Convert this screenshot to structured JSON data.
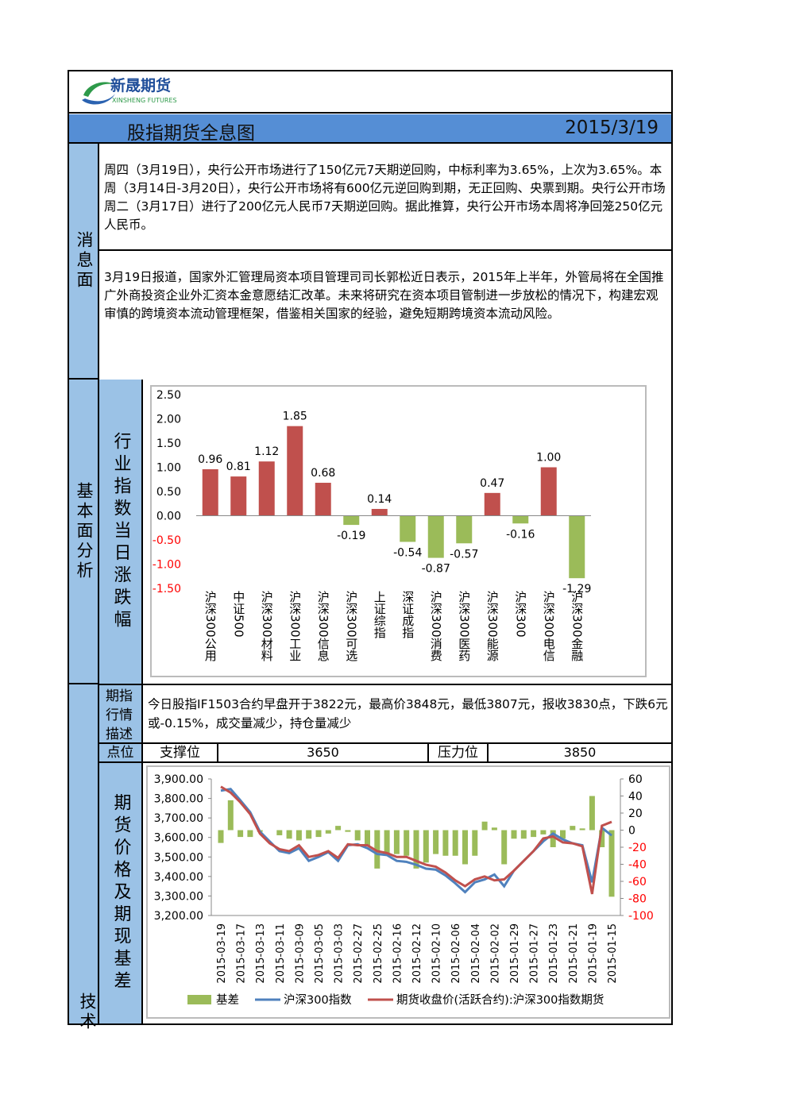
{
  "header": {
    "logo": "新晟期货",
    "logo_en": "XINSHENG FUTURES",
    "title": "股指期货全息图",
    "date": "2015/3/19"
  },
  "news": {
    "label": "消息面",
    "items": [
      "周四（3月19日），央行公开市场进行了150亿元7天期逆回购，中标利率为3.65%，上次为3.65%。本周（3月14日-3月20日），央行公开市场将有600亿元逆回购到期，无正回购、央票到期。央行公开市场周二（3月17日）进行了200亿元人民币7天期逆回购。据此推算，央行公开市场本周将净回笼250亿元人民币。",
      "3月19日报道，国家外汇管理局资本项目管理司司长郭松近日表示，2015年上半年，外管局将在全国推广外商投资企业外汇资本金意愿结汇改革。未来将研究在资本项目管制进一步放松的情况下，构建宏观审慎的跨境资本流动管理框架，借鉴相关国家的经验，避免短期跨境资本流动风险。"
    ]
  },
  "fundamental": {
    "label": "基本面分析",
    "chart_label": "行业指数当日涨跌幅"
  },
  "technical": {
    "label": "技术",
    "desc_label": "期指行情描述",
    "desc": "今日股指IF1503合约早盘开于3822元，最高价3848元，最低3807元，报收3830点，下跌6元或-0.15%，成交量减少，持仓量减少",
    "points_label": "点位",
    "support_label": "支撑位",
    "support": 3650,
    "resistance_label": "压力位",
    "resistance": 3850,
    "chart_label": "期货价格及期现基差"
  },
  "chart_data": [
    {
      "type": "bar",
      "categories": [
        "沪深300公用",
        "中证500",
        "沪深300材料",
        "沪深300工业",
        "沪深300信息",
        "沪深300可选",
        "上证综指",
        "深证成指",
        "沪深300消费",
        "沪深300医药",
        "沪深300能源",
        "沪深300",
        "沪深300电信",
        "沪深300金融"
      ],
      "values": [
        0.96,
        0.81,
        1.12,
        1.85,
        0.68,
        -0.19,
        0.14,
        -0.54,
        -0.87,
        -0.57,
        0.47,
        -0.16,
        1.0,
        -1.29
      ],
      "value_labels": [
        "0.96",
        "0.81",
        "1.12",
        "1.85",
        "0.68",
        "-0.19",
        "0.14",
        "-0.54",
        "-0.87",
        "-0.57",
        "0.47",
        "-0.16",
        "1.00",
        "-1.29"
      ],
      "positive_color": "#c0504d",
      "negative_color": "#9bbb59",
      "negative_tick_color": "#ff0000",
      "ylim": [
        -1.5,
        2.5
      ],
      "yticks": [
        {
          "value": 2.5,
          "label": "2.50"
        },
        {
          "value": 2,
          "label": "2.00"
        },
        {
          "value": 1.5,
          "label": "1.50"
        },
        {
          "value": 1,
          "label": "1.00"
        },
        {
          "value": 0.5,
          "label": "0.50"
        },
        {
          "value": 0,
          "label": "0.00"
        },
        {
          "value": -0.5,
          "label": "-0.50"
        },
        {
          "value": -1,
          "label": "-1.00"
        },
        {
          "value": -1.5,
          "label": "-1.50"
        }
      ],
      "grid": false
    },
    {
      "type": "combo",
      "categories": [
        "2015-03-19",
        null,
        "2015-03-17",
        null,
        "2015-03-13",
        null,
        "2015-03-11",
        null,
        "2015-03-09",
        null,
        "2015-03-05",
        null,
        "2015-03-03",
        null,
        "2015-02-27",
        null,
        "2015-02-25",
        null,
        "2015-02-16",
        null,
        "2015-02-12",
        null,
        "2015-02-10",
        null,
        "2015-02-06",
        null,
        "2015-02-04",
        null,
        "2015-02-02",
        null,
        "2015-01-29",
        null,
        "2015-01-27",
        null,
        "2015-01-23",
        null,
        "2015-01-21",
        null,
        "2015-01-19",
        null,
        "2015-01-15"
      ],
      "series": [
        {
          "name": "基差",
          "type": "bar",
          "axis": "y2",
          "color": "#9bbb59",
          "values": [
            -15,
            35,
            -8,
            -8,
            -2,
            0,
            -6,
            -10,
            -12,
            -10,
            -8,
            -4,
            5,
            -2,
            -12,
            -18,
            -45,
            -30,
            -28,
            -30,
            -45,
            -38,
            -28,
            -30,
            -30,
            -40,
            -30,
            10,
            3,
            -40,
            -10,
            -10,
            -8,
            -5,
            -20,
            -10,
            5,
            2,
            40,
            -20,
            -78
          ]
        },
        {
          "name": "沪深300指数",
          "type": "line",
          "color": "#4f81bd",
          "values": [
            3840,
            3848,
            3790,
            3730,
            3630,
            3580,
            3530,
            3520,
            3545,
            3480,
            3500,
            3525,
            3480,
            3560,
            3565,
            3545,
            3515,
            3510,
            3480,
            3475,
            3460,
            3440,
            3435,
            3405,
            3365,
            3320,
            3370,
            3385,
            3410,
            3350,
            3430,
            3480,
            3530,
            3580,
            3620,
            3590,
            3570,
            3560,
            3370,
            3650,
            3610
          ]
        },
        {
          "name": "期货收盘价(活跃合约):沪深300指数期货",
          "type": "line",
          "color": "#c0504d",
          "values": [
            3860,
            3830,
            3780,
            3720,
            3620,
            3570,
            3540,
            3530,
            3560,
            3500,
            3510,
            3530,
            3495,
            3565,
            3560,
            3560,
            3530,
            3520,
            3500,
            3500,
            3480,
            3460,
            3450,
            3420,
            3380,
            3350,
            3385,
            3400,
            3380,
            3385,
            3430,
            3480,
            3530,
            3595,
            3605,
            3575,
            3570,
            3555,
            3310,
            3660,
            3680
          ]
        }
      ],
      "ylim": [
        3200,
        3900
      ],
      "yticks": [
        {
          "value": 3900,
          "label": "3,900.00"
        },
        {
          "value": 3800,
          "label": "3,800.00"
        },
        {
          "value": 3700,
          "label": "3,700.00"
        },
        {
          "value": 3600,
          "label": "3,600.00"
        },
        {
          "value": 3500,
          "label": "3,500.00"
        },
        {
          "value": 3400,
          "label": "3,400.00"
        },
        {
          "value": 3300,
          "label": "3,300.00"
        },
        {
          "value": 3200,
          "label": "3,200.00"
        }
      ],
      "y2lim": [
        -100,
        60
      ],
      "y2ticks": [
        60,
        40,
        20,
        0,
        -20,
        -40,
        -60,
        -80,
        -100
      ],
      "negative_tick_color": "#ff0000",
      "legend": "bottom",
      "grid": false
    }
  ]
}
